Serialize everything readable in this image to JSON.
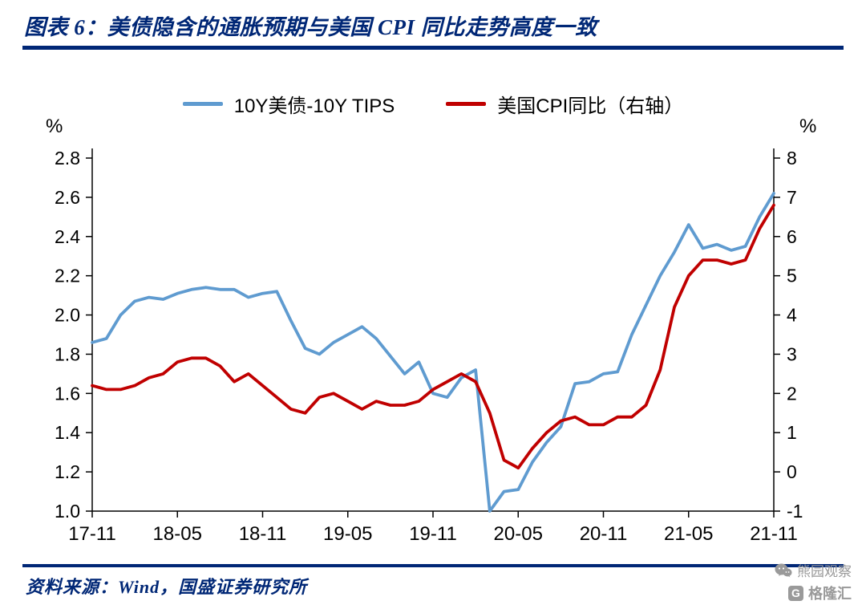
{
  "theme": {
    "accent": "#002776",
    "watermark": "#9a9a9a"
  },
  "header": {
    "title": "图表 6：美债隐含的通胀预期与美国 CPI 同比走势高度一致"
  },
  "footer": {
    "source": "资料来源：Wind，国盛证券研究所",
    "watermark_wechat": "熊园观察",
    "brand_initial": "G",
    "watermark_brand": "格隆汇"
  },
  "chart_data": {
    "type": "line",
    "title": "美债隐含的通胀预期与美国CPI同比走势高度一致",
    "grid": false,
    "legend_position": "top",
    "x": [
      "17-11",
      "17-12",
      "18-01",
      "18-02",
      "18-03",
      "18-04",
      "18-05",
      "18-06",
      "18-07",
      "18-08",
      "18-09",
      "18-10",
      "18-11",
      "18-12",
      "19-01",
      "19-02",
      "19-03",
      "19-04",
      "19-05",
      "19-06",
      "19-07",
      "19-08",
      "19-09",
      "19-10",
      "19-11",
      "19-12",
      "20-01",
      "20-02",
      "20-03",
      "20-04",
      "20-05",
      "20-06",
      "20-07",
      "20-08",
      "20-09",
      "20-10",
      "20-11",
      "20-12",
      "21-01",
      "21-02",
      "21-03",
      "21-04",
      "21-05",
      "21-06",
      "21-07",
      "21-08",
      "21-09",
      "21-10",
      "21-11"
    ],
    "x_tick_labels": [
      "17-11",
      "18-05",
      "18-11",
      "19-05",
      "19-11",
      "20-05",
      "20-11",
      "21-05",
      "21-11"
    ],
    "left_axis": {
      "label": "%",
      "min": 1.0,
      "max": 2.8,
      "step": 0.2
    },
    "right_axis": {
      "label": "%",
      "min": -1,
      "max": 8,
      "step": 1
    },
    "series": [
      {
        "name": "10Y美债-10Y TIPS",
        "axis": "left",
        "color": "#5F9BD0",
        "values": [
          1.86,
          1.88,
          2.0,
          2.07,
          2.09,
          2.08,
          2.11,
          2.13,
          2.14,
          2.13,
          2.13,
          2.09,
          2.11,
          2.12,
          1.97,
          1.83,
          1.8,
          1.86,
          1.9,
          1.94,
          1.88,
          1.79,
          1.7,
          1.76,
          1.6,
          1.58,
          1.68,
          1.72,
          1.0,
          1.1,
          1.11,
          1.25,
          1.35,
          1.43,
          1.65,
          1.66,
          1.7,
          1.71,
          1.9,
          2.05,
          2.2,
          2.32,
          2.46,
          2.34,
          2.36,
          2.33,
          2.35,
          2.5,
          2.62
        ]
      },
      {
        "name": "美国CPI同比（右轴）",
        "axis": "right",
        "color": "#C00000",
        "values": [
          2.2,
          2.1,
          2.1,
          2.2,
          2.4,
          2.5,
          2.8,
          2.9,
          2.9,
          2.7,
          2.3,
          2.5,
          2.2,
          1.9,
          1.6,
          1.5,
          1.9,
          2.0,
          1.8,
          1.6,
          1.8,
          1.7,
          1.7,
          1.8,
          2.1,
          2.3,
          2.5,
          2.3,
          1.5,
          0.3,
          0.1,
          0.6,
          1.0,
          1.3,
          1.4,
          1.2,
          1.2,
          1.4,
          1.4,
          1.7,
          2.6,
          4.2,
          5.0,
          5.4,
          5.4,
          5.3,
          5.4,
          6.2,
          6.8
        ]
      }
    ]
  }
}
